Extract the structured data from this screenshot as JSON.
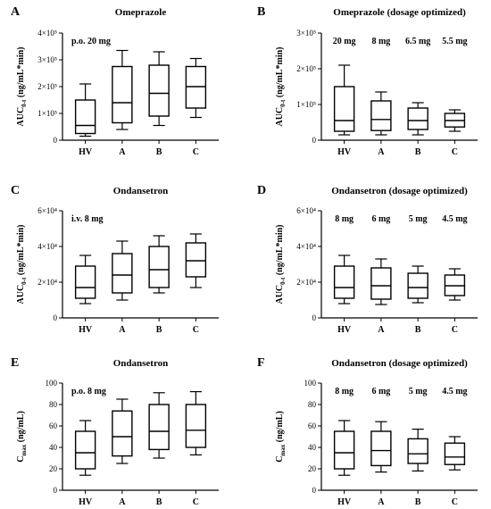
{
  "chart_data": [
    {
      "type": "box",
      "panel_label": "A",
      "title": "Omeprazole",
      "ylabel": "AUC",
      "ylabel_sub": "0-t",
      "ylabel_rest": " (ng/mL*min)",
      "ylim": [
        0,
        400000
      ],
      "yticks": [
        0,
        100000,
        200000,
        300000,
        400000
      ],
      "ytick_labels": [
        "0",
        "1×10⁵",
        "2×10⁵",
        "3×10⁵",
        "4×10⁵"
      ],
      "annotation": "p.o. 20 mg",
      "dose_labels": [],
      "categories": [
        "HV",
        "A",
        "B",
        "C"
      ],
      "boxes": [
        {
          "min": 15000,
          "q1": 25000,
          "median": 55000,
          "q3": 150000,
          "max": 210000
        },
        {
          "min": 40000,
          "q1": 65000,
          "median": 140000,
          "q3": 275000,
          "max": 335000
        },
        {
          "min": 55000,
          "q1": 90000,
          "median": 175000,
          "q3": 280000,
          "max": 330000
        },
        {
          "min": 85000,
          "q1": 120000,
          "median": 200000,
          "q3": 275000,
          "max": 305000
        }
      ]
    },
    {
      "type": "box",
      "panel_label": "B",
      "title": "Omeprazole (dosage optimized)",
      "ylabel": "AUC",
      "ylabel_sub": "0-t",
      "ylabel_rest": " (ng/mL*min)",
      "ylim": [
        0,
        300000
      ],
      "yticks": [
        0,
        100000,
        200000,
        300000
      ],
      "ytick_labels": [
        "0",
        "1×10⁵",
        "2×10⁵",
        "3×10⁵"
      ],
      "annotation": "",
      "dose_labels": [
        "20 mg",
        "8 mg",
        "6.5 mg",
        "5.5 mg"
      ],
      "categories": [
        "HV",
        "A",
        "B",
        "C"
      ],
      "boxes": [
        {
          "min": 15000,
          "q1": 25000,
          "median": 55000,
          "q3": 150000,
          "max": 210000
        },
        {
          "min": 15000,
          "q1": 27000,
          "median": 58000,
          "q3": 110000,
          "max": 135000
        },
        {
          "min": 15000,
          "q1": 30000,
          "median": 55000,
          "q3": 90000,
          "max": 105000
        },
        {
          "min": 25000,
          "q1": 37000,
          "median": 55000,
          "q3": 75000,
          "max": 85000
        }
      ]
    },
    {
      "type": "box",
      "panel_label": "C",
      "title": "Ondansetron",
      "ylabel": "AUC",
      "ylabel_sub": "0-t",
      "ylabel_rest": " (ng/mL*min)",
      "ylim": [
        0,
        60000
      ],
      "yticks": [
        0,
        20000,
        40000,
        60000
      ],
      "ytick_labels": [
        "0",
        "2×10⁴",
        "4×10⁴",
        "6×10⁴"
      ],
      "annotation": "i.v. 8 mg",
      "dose_labels": [],
      "categories": [
        "HV",
        "A",
        "B",
        "C"
      ],
      "boxes": [
        {
          "min": 8000,
          "q1": 11000,
          "median": 17000,
          "q3": 29000,
          "max": 35000
        },
        {
          "min": 10000,
          "q1": 14000,
          "median": 24000,
          "q3": 36000,
          "max": 43000
        },
        {
          "min": 14000,
          "q1": 17000,
          "median": 27000,
          "q3": 40000,
          "max": 46000
        },
        {
          "min": 17000,
          "q1": 23000,
          "median": 32000,
          "q3": 42000,
          "max": 47000
        }
      ]
    },
    {
      "type": "box",
      "panel_label": "D",
      "title": "Ondansetron (dosage optimized)",
      "ylabel": "AUC",
      "ylabel_sub": "0-t",
      "ylabel_rest": " (ng/mL*min)",
      "ylim": [
        0,
        60000
      ],
      "yticks": [
        0,
        20000,
        40000,
        60000
      ],
      "ytick_labels": [
        "0",
        "2×10⁴",
        "4×10⁴",
        "6×10⁴"
      ],
      "annotation": "",
      "dose_labels": [
        "8 mg",
        "6 mg",
        "5 mg",
        "4.5 mg"
      ],
      "categories": [
        "HV",
        "A",
        "B",
        "C"
      ],
      "boxes": [
        {
          "min": 8000,
          "q1": 11000,
          "median": 17000,
          "q3": 29000,
          "max": 35000
        },
        {
          "min": 7500,
          "q1": 10500,
          "median": 18000,
          "q3": 28000,
          "max": 33000
        },
        {
          "min": 8500,
          "q1": 11000,
          "median": 17000,
          "q3": 25000,
          "max": 29000
        },
        {
          "min": 10000,
          "q1": 12500,
          "median": 18000,
          "q3": 24000,
          "max": 27500
        }
      ]
    },
    {
      "type": "box",
      "panel_label": "E",
      "title": "Ondansetron",
      "ylabel": "C",
      "ylabel_sub": "max",
      "ylabel_rest": " (ng/mL)",
      "ylim": [
        0,
        100
      ],
      "yticks": [
        0,
        20,
        40,
        60,
        80,
        100
      ],
      "ytick_labels": [
        "0",
        "20",
        "40",
        "60",
        "80",
        "100"
      ],
      "annotation": "p.o. 8 mg",
      "dose_labels": [],
      "categories": [
        "HV",
        "A",
        "B",
        "C"
      ],
      "boxes": [
        {
          "min": 14,
          "q1": 20,
          "median": 35,
          "q3": 55,
          "max": 65
        },
        {
          "min": 25,
          "q1": 32,
          "median": 50,
          "q3": 74,
          "max": 85
        },
        {
          "min": 30,
          "q1": 38,
          "median": 55,
          "q3": 80,
          "max": 91
        },
        {
          "min": 33,
          "q1": 40,
          "median": 56,
          "q3": 80,
          "max": 92
        }
      ]
    },
    {
      "type": "box",
      "panel_label": "F",
      "title": "Ondansetron (dosage optimized)",
      "ylabel": "C",
      "ylabel_sub": "max",
      "ylabel_rest": " (ng/mL)",
      "ylim": [
        0,
        100
      ],
      "yticks": [
        0,
        20,
        40,
        60,
        80,
        100
      ],
      "ytick_labels": [
        "0",
        "20",
        "40",
        "60",
        "80",
        "100"
      ],
      "annotation": "",
      "dose_labels": [
        "8 mg",
        "6 mg",
        "5 mg",
        "4.5 mg"
      ],
      "categories": [
        "HV",
        "A",
        "B",
        "C"
      ],
      "boxes": [
        {
          "min": 14,
          "q1": 20,
          "median": 35,
          "q3": 55,
          "max": 65
        },
        {
          "min": 17,
          "q1": 23,
          "median": 37,
          "q3": 55,
          "max": 64
        },
        {
          "min": 18,
          "q1": 25,
          "median": 34,
          "q3": 48,
          "max": 57
        },
        {
          "min": 19,
          "q1": 24,
          "median": 31,
          "q3": 44,
          "max": 50
        }
      ]
    }
  ]
}
